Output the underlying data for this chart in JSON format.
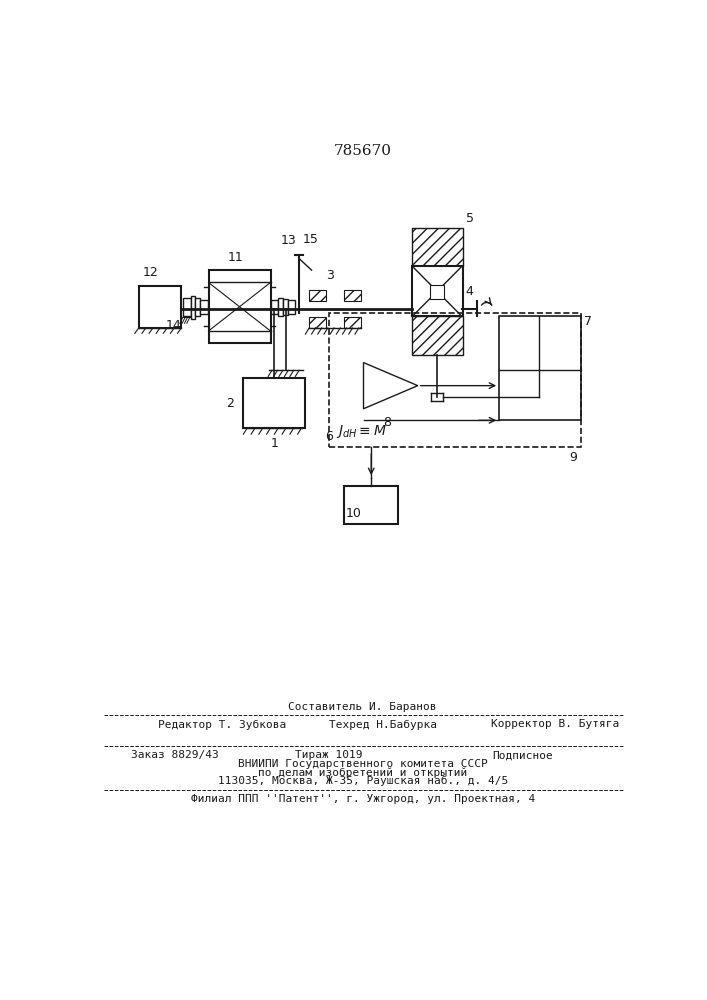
{
  "title": "785670",
  "bg_color": "#ffffff",
  "line_color": "#1a1a1a",
  "footer_editor": "Редактор Т. Зубкова",
  "footer_composer_title": "Составитель И. Баранов",
  "footer_techred": "Техред Н.Бабурка",
  "footer_corrector": "Корректор В. Бутяга",
  "footer_order": "Заказ 8829/43",
  "footer_tirazh": "Тираж 1019",
  "footer_podp": "Подписное",
  "footer_vnipi": "ВНИИПИ Государственного комитета СССР",
  "footer_dela": "по делам изобретений и открытий",
  "footer_addr": "113035, Москва, Ж-35, Раушская наб., д. 4/5",
  "footer_filial": "Филиал ППП ''Патент'', г. Ужгород, ул. Проектная, 4"
}
